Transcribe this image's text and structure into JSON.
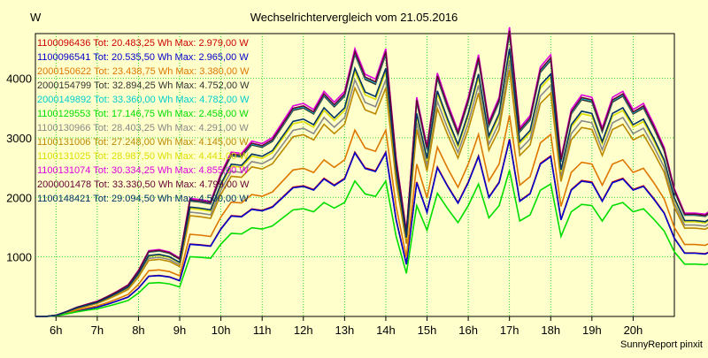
{
  "chart_data": {
    "type": "line",
    "title": "Wechselrichtervergleich vom 21.05.2016",
    "ylabel": "W",
    "xlabel": "",
    "footer": "SunnyReport pinxit",
    "x_start": 5.5,
    "x_end": 21.0,
    "x_step": 0.25,
    "ylim": [
      0,
      4750
    ],
    "yticks": [
      1000,
      2000,
      3000,
      4000
    ],
    "xticks": [
      "6h",
      "7h",
      "8h",
      "9h",
      "10h",
      "11h",
      "12h",
      "13h",
      "14h",
      "15h",
      "16h",
      "17h",
      "18h",
      "19h",
      "20h"
    ],
    "grid": true,
    "grid_color": "#00cc00",
    "legend_position": "top-left",
    "series": [
      {
        "name": "1100096436 Tot: 20.483,25 Wh Max: 2.979,00 W",
        "color": "#cc0000",
        "scale": 0.627
      },
      {
        "name": "1100096541 Tot: 20.535,50 Wh Max: 2.965,00 W",
        "color": "#0000cc",
        "scale": 0.624
      },
      {
        "name": "2000150622 Tot: 23.438,75 Wh Max: 3.380,00 W",
        "color": "#dd7700",
        "scale": 0.711
      },
      {
        "name": "2000154799 Tot: 32.894,25 Wh Max: 4.752,00 W",
        "color": "#333333",
        "scale": 1.0
      },
      {
        "name": "2000149892 Tot: 33.360,00 Wh Max: 4.782,00 W",
        "color": "#00cccc",
        "scale": 1.006
      },
      {
        "name": "1100129553 Tot: 17.146,75 Wh Max: 2.458,00 W",
        "color": "#00dd00",
        "scale": 0.517
      },
      {
        "name": "1100130966 Tot: 28.403,25 Wh Max: 4.291,00 W",
        "color": "#888888",
        "scale": 0.903
      },
      {
        "name": "1100131006 Tot: 27.248,00 Wh Max: 4.145,00 W",
        "color": "#bb8800",
        "scale": 0.872
      },
      {
        "name": "1100131025 Tot: 28.987,50 Wh Max: 4.441,00 W",
        "color": "#dddd00",
        "scale": 0.935
      },
      {
        "name": "1100131074 Tot: 30.334,25 Wh Max: 4.855,00 W",
        "color": "#dd00dd",
        "scale": 1.022
      },
      {
        "name": "2000001478 Tot: 33.330,50 Wh Max: 4.799,00 W",
        "color": "#660033",
        "scale": 1.01
      },
      {
        "name": "1100148421 Tot: 29.094,50 Wh Max: 4.500,00 W",
        "color": "#003366",
        "scale": 0.947
      }
    ],
    "reference_profile": [
      0,
      0,
      20,
      80,
      150,
      200,
      250,
      330,
      420,
      520,
      760,
      1080,
      1100,
      1060,
      960,
      1940,
      1920,
      1890,
      2350,
      2700,
      2680,
      2880,
      2840,
      2940,
      3200,
      3460,
      3500,
      3400,
      3700,
      3520,
      3700,
      4400,
      3980,
      3900,
      4400,
      2600,
      1400,
      3600,
      2800,
      4000,
      3500,
      3050,
      3600,
      4300,
      3200,
      3600,
      4752,
      3100,
      3300,
      4100,
      4300,
      2600,
      3400,
      3640,
      3600,
      3100,
      3600,
      3700,
      3400,
      3500,
      3160,
      2780,
      2100,
      1700,
      1700,
      1680,
      1800,
      1500,
      1000,
      660,
      600,
      500,
      400,
      350,
      300,
      200,
      150,
      100,
      50,
      0,
      0,
      0,
      0,
      0,
      0,
      0,
      0,
      0,
      0,
      0,
      0,
      0,
      0
    ]
  }
}
